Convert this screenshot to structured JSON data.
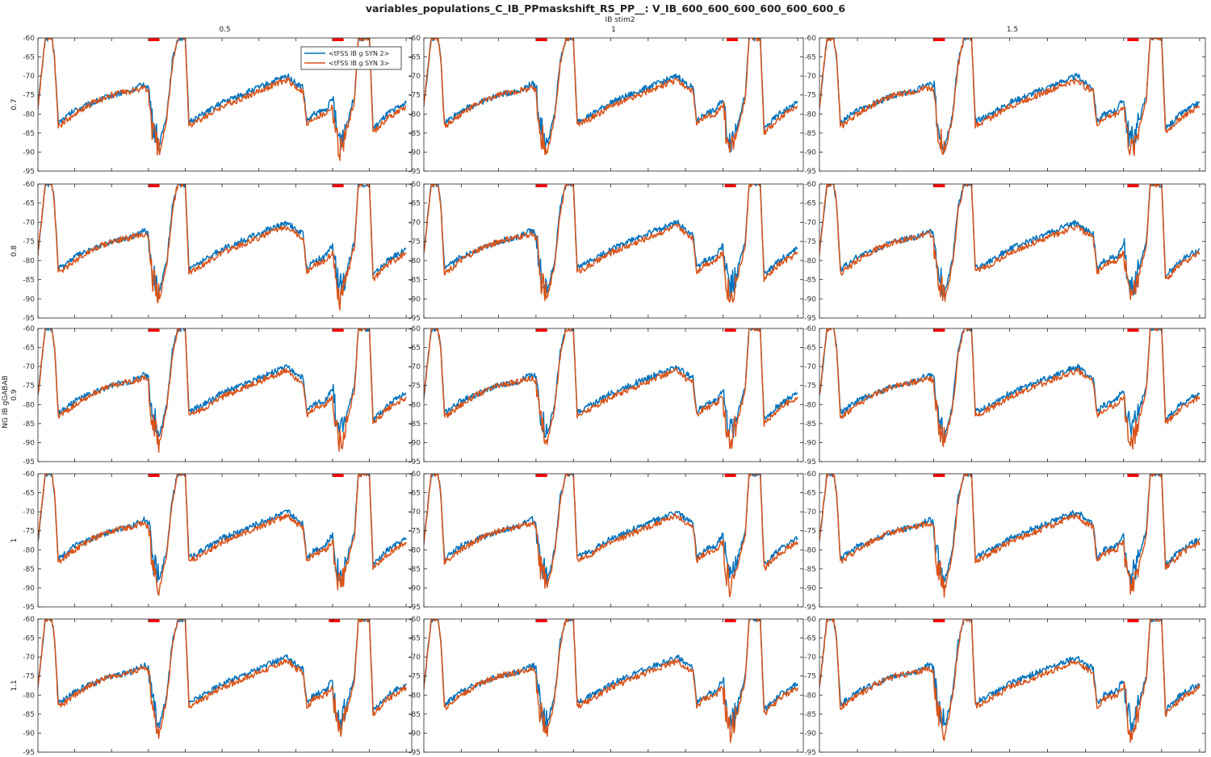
{
  "title": "variables_populations_C_IB_PPmaskshift_RS_PP__: V_IB_600_600_600_600_600_600_6",
  "col_param_label": "IB stim2",
  "row_param_label": "NG IB gGABAB",
  "legend": [
    {
      "label": "<tFSS IB g SYN 2>",
      "color": "#0072BD"
    },
    {
      "label": "<tFSS IB g SYN 3>",
      "color": "#D95319"
    }
  ],
  "colors": {
    "series1": "#0072BD",
    "series2": "#D95319",
    "stim_marker": "#ff0000",
    "axis": "#262626"
  },
  "chart_data": {
    "type": "line",
    "layout": "grid",
    "columns": [
      "0.5",
      "1",
      "1.5"
    ],
    "rows": [
      "0.7",
      "0.8",
      "0.9",
      "1",
      "1.1"
    ],
    "xlim": [
      0,
      2030
    ],
    "ylim": [
      -95,
      -60
    ],
    "xticks": [
      0,
      200,
      400,
      600,
      800,
      1000,
      1200,
      1400,
      1600,
      1800,
      2000
    ],
    "yticks": [
      -95,
      -90,
      -85,
      -80,
      -75,
      -70,
      -65,
      -60
    ],
    "stim_markers": [
      [
        [
          [
            600,
            660
          ],
          [
            1600,
            1660
          ]
        ],
        [
          [
            600,
            660
          ],
          [
            1620,
            1680
          ]
        ],
        [
          [
            600,
            660
          ],
          [
            1620,
            1680
          ]
        ]
      ],
      [
        [
          [
            600,
            660
          ],
          [
            1600,
            1660
          ]
        ],
        [
          [
            600,
            660
          ],
          [
            1610,
            1670
          ]
        ],
        [
          [
            600,
            660
          ],
          [
            1620,
            1680
          ]
        ]
      ],
      [
        [
          [
            600,
            660
          ],
          [
            1600,
            1660
          ]
        ],
        [
          [
            600,
            660
          ],
          [
            1610,
            1670
          ]
        ],
        [
          [
            600,
            660
          ],
          [
            1620,
            1680
          ]
        ]
      ],
      [
        [
          [
            600,
            660
          ],
          [
            1600,
            1660
          ]
        ],
        [
          [
            600,
            660
          ],
          [
            1610,
            1670
          ]
        ],
        [
          [
            600,
            660
          ],
          [
            1620,
            1680
          ]
        ]
      ],
      [
        [
          [
            600,
            660
          ],
          [
            1580,
            1640
          ]
        ],
        [
          [
            600,
            660
          ],
          [
            1610,
            1670
          ]
        ],
        [
          [
            600,
            660
          ],
          [
            1620,
            1680
          ]
        ]
      ]
    ],
    "series_template": [
      {
        "name": "<tFSS IB g SYN 2>",
        "x": [
          0,
          40,
          60,
          75,
          90,
          110,
          120,
          200,
          300,
          400,
          500,
          580,
          600,
          620,
          660,
          700,
          730,
          760,
          790,
          800,
          820,
          900,
          1000,
          1100,
          1200,
          1300,
          1360,
          1400,
          1440,
          1460,
          1500,
          1560,
          1600,
          1620,
          1640,
          1660,
          1680,
          1720,
          1740,
          1760,
          1800,
          1820,
          1900,
          2000
        ],
        "y": [
          -78,
          -60,
          -60,
          -60,
          -65,
          -82,
          -82,
          -79,
          -77,
          -75,
          -74,
          -72,
          -73,
          -82,
          -88,
          -80,
          -66,
          -60,
          -60,
          -60,
          -82,
          -80,
          -77,
          -75,
          -73,
          -71,
          -70,
          -72,
          -73,
          -82,
          -80,
          -79,
          -76,
          -84,
          -87,
          -85,
          -82,
          -75,
          -60,
          -60,
          -60,
          -84,
          -80,
          -77
        ]
      },
      {
        "name": "<tFSS IB g SYN 3>",
        "x": [
          0,
          40,
          60,
          75,
          90,
          110,
          120,
          200,
          300,
          400,
          500,
          580,
          600,
          620,
          660,
          700,
          730,
          760,
          790,
          800,
          820,
          900,
          1000,
          1100,
          1200,
          1300,
          1360,
          1400,
          1440,
          1460,
          1500,
          1560,
          1600,
          1620,
          1640,
          1660,
          1680,
          1720,
          1740,
          1760,
          1800,
          1820,
          1900,
          2000
        ],
        "y": [
          -78,
          -60,
          -60,
          -60,
          -65,
          -83,
          -83,
          -80,
          -77,
          -75,
          -74,
          -73,
          -74,
          -84,
          -90,
          -81,
          -67,
          -60,
          -60,
          -60,
          -83,
          -81,
          -78,
          -76,
          -74,
          -72,
          -71,
          -73,
          -74,
          -83,
          -81,
          -80,
          -78,
          -86,
          -90,
          -87,
          -84,
          -76,
          -60,
          -60,
          -60,
          -85,
          -81,
          -78
        ]
      }
    ]
  }
}
